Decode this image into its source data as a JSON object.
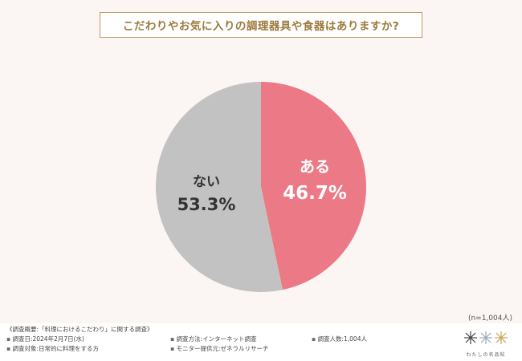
{
  "title": "こだわりやお気に入りの調理器具や食器はありますか?",
  "chart_data": {
    "type": "pie",
    "title": "こだわりやお気に入りの調理器具や食器はありますか?",
    "slices": [
      {
        "label": "ある",
        "value": 46.7,
        "value_label": "46.7%",
        "color": "#ec7a86"
      },
      {
        "label": "ない",
        "value": 53.3,
        "value_label": "53.3%",
        "color": "#c2c2c2"
      }
    ],
    "start": "top",
    "direction": "clockwise"
  },
  "n_label": "(n=1,004人)",
  "footer": {
    "heading": "《調査概要:「料理におけるこだわり」に関する調査》",
    "date": "調査日:2024年2月7日(水)",
    "target": "調査対象:日常的に料理をする方",
    "method": "調査方法:インターネット調査",
    "provider": "モニター提供元:ゼネラルリサーチ",
    "count": "調査人数:1,004人"
  },
  "logo": {
    "text": "わたしの名品帖"
  },
  "colors": {
    "accent": "#9c7a3c",
    "background": "#fbf5f3"
  }
}
